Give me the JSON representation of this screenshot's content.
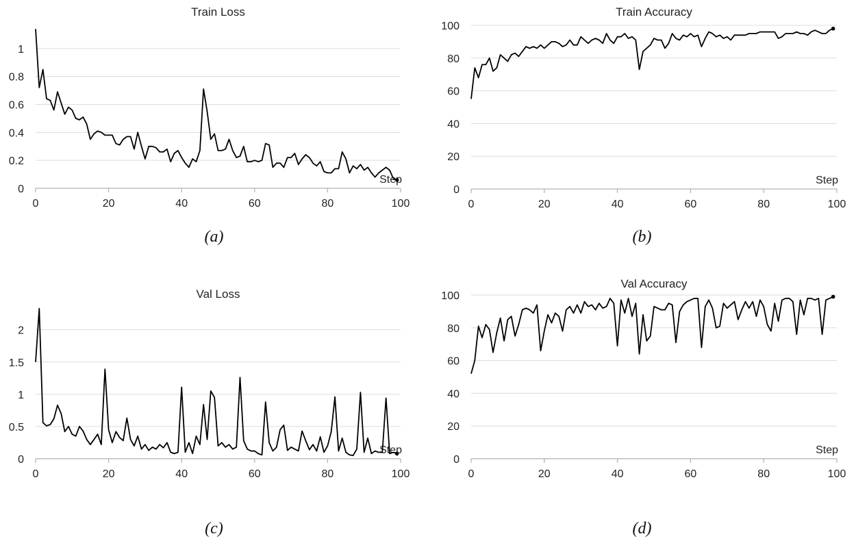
{
  "chart_data": [
    {
      "type": "line",
      "title": "Train Loss",
      "xlabel": "Step",
      "ylabel": "",
      "xlim": [
        0,
        100
      ],
      "ylim": [
        0,
        1.2
      ],
      "xticks": [
        0,
        20,
        40,
        60,
        80,
        100
      ],
      "yticks": [
        0,
        0.2,
        0.4,
        0.6,
        0.8,
        1
      ],
      "grid": true,
      "color": "#000000",
      "x": [
        0,
        1,
        2,
        3,
        4,
        5,
        6,
        7,
        8,
        9,
        10,
        11,
        12,
        13,
        14,
        15,
        16,
        17,
        18,
        19,
        20,
        21,
        22,
        23,
        24,
        25,
        26,
        27,
        28,
        29,
        30,
        31,
        32,
        33,
        34,
        35,
        36,
        37,
        38,
        39,
        40,
        41,
        42,
        43,
        44,
        45,
        46,
        47,
        48,
        49,
        50,
        51,
        52,
        53,
        54,
        55,
        56,
        57,
        58,
        59,
        60,
        61,
        62,
        63,
        64,
        65,
        66,
        67,
        68,
        69,
        70,
        71,
        72,
        73,
        74,
        75,
        76,
        77,
        78,
        79,
        80,
        81,
        82,
        83,
        84,
        85,
        86,
        87,
        88,
        89,
        90,
        91,
        92,
        93,
        94,
        95,
        96,
        97,
        98,
        99
      ],
      "values": [
        1.14,
        0.72,
        0.85,
        0.64,
        0.63,
        0.56,
        0.69,
        0.61,
        0.53,
        0.58,
        0.56,
        0.5,
        0.49,
        0.51,
        0.46,
        0.35,
        0.39,
        0.41,
        0.4,
        0.38,
        0.38,
        0.38,
        0.32,
        0.31,
        0.35,
        0.37,
        0.37,
        0.28,
        0.4,
        0.3,
        0.21,
        0.3,
        0.3,
        0.29,
        0.26,
        0.26,
        0.28,
        0.19,
        0.25,
        0.27,
        0.22,
        0.18,
        0.15,
        0.21,
        0.19,
        0.27,
        0.71,
        0.55,
        0.35,
        0.39,
        0.27,
        0.27,
        0.28,
        0.35,
        0.27,
        0.22,
        0.23,
        0.3,
        0.19,
        0.19,
        0.2,
        0.19,
        0.2,
        0.32,
        0.31,
        0.15,
        0.18,
        0.18,
        0.15,
        0.22,
        0.22,
        0.25,
        0.17,
        0.21,
        0.24,
        0.22,
        0.18,
        0.16,
        0.19,
        0.12,
        0.11,
        0.11,
        0.14,
        0.14,
        0.26,
        0.21,
        0.11,
        0.16,
        0.14,
        0.17,
        0.13,
        0.15,
        0.11,
        0.08,
        0.11,
        0.13,
        0.15,
        0.13,
        0.07,
        0.06
      ]
    },
    {
      "type": "line",
      "title": "Train Accuracy",
      "xlabel": "Step",
      "ylabel": "",
      "xlim": [
        0,
        100
      ],
      "ylim": [
        0,
        100
      ],
      "xticks": [
        0,
        20,
        40,
        60,
        80,
        100
      ],
      "yticks": [
        0,
        20,
        40,
        60,
        80,
        100
      ],
      "grid": true,
      "color": "#000000",
      "x": [
        0,
        1,
        2,
        3,
        4,
        5,
        6,
        7,
        8,
        9,
        10,
        11,
        12,
        13,
        14,
        15,
        16,
        17,
        18,
        19,
        20,
        21,
        22,
        23,
        24,
        25,
        26,
        27,
        28,
        29,
        30,
        31,
        32,
        33,
        34,
        35,
        36,
        37,
        38,
        39,
        40,
        41,
        42,
        43,
        44,
        45,
        46,
        47,
        48,
        49,
        50,
        51,
        52,
        53,
        54,
        55,
        56,
        57,
        58,
        59,
        60,
        61,
        62,
        63,
        64,
        65,
        66,
        67,
        68,
        69,
        70,
        71,
        72,
        73,
        74,
        75,
        76,
        77,
        78,
        79,
        80,
        81,
        82,
        83,
        84,
        85,
        86,
        87,
        88,
        89,
        90,
        91,
        92,
        93,
        94,
        95,
        96,
        97,
        98,
        99
      ],
      "values": [
        55,
        74,
        68,
        76,
        76,
        80,
        72,
        74,
        82,
        80,
        78,
        82,
        83,
        81,
        84,
        87,
        86,
        87,
        86,
        88,
        86,
        88,
        90,
        90,
        89,
        87,
        88,
        91,
        88,
        88,
        93,
        91,
        89,
        91,
        92,
        91,
        89,
        95,
        91,
        89,
        93,
        93,
        95,
        92,
        93,
        91,
        73,
        84,
        86,
        88,
        92,
        91,
        91,
        86,
        89,
        95,
        92,
        91,
        94,
        93,
        95,
        93,
        94,
        87,
        92,
        96,
        95,
        93,
        94,
        92,
        93,
        91,
        94,
        94,
        94,
        94,
        95,
        95,
        95,
        96,
        96,
        96,
        96,
        96,
        92,
        93,
        95,
        95,
        95,
        96,
        95,
        95,
        94,
        96,
        97,
        96,
        95,
        95,
        97,
        98
      ]
    },
    {
      "type": "line",
      "title": "Val Loss",
      "xlabel": "Step",
      "ylabel": "",
      "xlim": [
        0,
        100
      ],
      "ylim": [
        0,
        2.4
      ],
      "xticks": [
        0,
        20,
        40,
        60,
        80,
        100
      ],
      "yticks": [
        0,
        0.5,
        1,
        1.5,
        2
      ],
      "grid": true,
      "color": "#000000",
      "x": [
        0,
        1,
        2,
        3,
        4,
        5,
        6,
        7,
        8,
        9,
        10,
        11,
        12,
        13,
        14,
        15,
        16,
        17,
        18,
        19,
        20,
        21,
        22,
        23,
        24,
        25,
        26,
        27,
        28,
        29,
        30,
        31,
        32,
        33,
        34,
        35,
        36,
        37,
        38,
        39,
        40,
        41,
        42,
        43,
        44,
        45,
        46,
        47,
        48,
        49,
        50,
        51,
        52,
        53,
        54,
        55,
        56,
        57,
        58,
        59,
        60,
        61,
        62,
        63,
        64,
        65,
        66,
        67,
        68,
        69,
        70,
        71,
        72,
        73,
        74,
        75,
        76,
        77,
        78,
        79,
        80,
        81,
        82,
        83,
        84,
        85,
        86,
        87,
        88,
        89,
        90,
        91,
        92,
        93,
        94,
        95,
        96,
        97,
        98,
        99
      ],
      "values": [
        1.5,
        2.33,
        0.56,
        0.51,
        0.53,
        0.62,
        0.83,
        0.7,
        0.42,
        0.5,
        0.38,
        0.35,
        0.5,
        0.43,
        0.3,
        0.22,
        0.3,
        0.38,
        0.22,
        1.39,
        0.45,
        0.25,
        0.42,
        0.33,
        0.28,
        0.63,
        0.3,
        0.2,
        0.35,
        0.15,
        0.22,
        0.13,
        0.18,
        0.15,
        0.22,
        0.17,
        0.25,
        0.1,
        0.08,
        0.1,
        1.11,
        0.1,
        0.25,
        0.08,
        0.35,
        0.22,
        0.84,
        0.3,
        1.05,
        0.95,
        0.2,
        0.25,
        0.18,
        0.22,
        0.15,
        0.18,
        1.26,
        0.28,
        0.15,
        0.12,
        0.12,
        0.08,
        0.06,
        0.88,
        0.25,
        0.12,
        0.18,
        0.45,
        0.52,
        0.13,
        0.18,
        0.15,
        0.12,
        0.43,
        0.28,
        0.14,
        0.22,
        0.12,
        0.34,
        0.1,
        0.2,
        0.42,
        0.96,
        0.12,
        0.32,
        0.1,
        0.06,
        0.05,
        0.15,
        1.03,
        0.1,
        0.32,
        0.08,
        0.12,
        0.1,
        0.1,
        0.94,
        0.08,
        0.1,
        0.08
      ]
    },
    {
      "type": "line",
      "title": "Val Accuracy",
      "xlabel": "Step",
      "ylabel": "",
      "xlim": [
        0,
        100
      ],
      "ylim": [
        0,
        100
      ],
      "xticks": [
        0,
        20,
        40,
        60,
        80,
        100
      ],
      "yticks": [
        0,
        20,
        40,
        60,
        80,
        100
      ],
      "grid": true,
      "color": "#000000",
      "x": [
        0,
        1,
        2,
        3,
        4,
        5,
        6,
        7,
        8,
        9,
        10,
        11,
        12,
        13,
        14,
        15,
        16,
        17,
        18,
        19,
        20,
        21,
        22,
        23,
        24,
        25,
        26,
        27,
        28,
        29,
        30,
        31,
        32,
        33,
        34,
        35,
        36,
        37,
        38,
        39,
        40,
        41,
        42,
        43,
        44,
        45,
        46,
        47,
        48,
        49,
        50,
        51,
        52,
        53,
        54,
        55,
        56,
        57,
        58,
        59,
        60,
        61,
        62,
        63,
        64,
        65,
        66,
        67,
        68,
        69,
        70,
        71,
        72,
        73,
        74,
        75,
        76,
        77,
        78,
        79,
        80,
        81,
        82,
        83,
        84,
        85,
        86,
        87,
        88,
        89,
        90,
        91,
        92,
        93,
        94,
        95,
        96,
        97,
        98,
        99
      ],
      "values": [
        52,
        60,
        81,
        74,
        82,
        79,
        65,
        77,
        86,
        72,
        85,
        87,
        75,
        82,
        91,
        92,
        91,
        89,
        94,
        66,
        78,
        88,
        83,
        89,
        87,
        78,
        91,
        93,
        89,
        94,
        89,
        96,
        93,
        94,
        91,
        95,
        92,
        93,
        98,
        95,
        69,
        97,
        89,
        98,
        87,
        95,
        64,
        88,
        72,
        75,
        93,
        92,
        91,
        91,
        95,
        94,
        71,
        90,
        94,
        96,
        97,
        98,
        98,
        68,
        93,
        97,
        92,
        80,
        81,
        95,
        92,
        94,
        96,
        85,
        91,
        96,
        92,
        96,
        87,
        97,
        93,
        82,
        78,
        95,
        84,
        97,
        98,
        98,
        96,
        76,
        97,
        88,
        98,
        98,
        97,
        98,
        76,
        97,
        98,
        99
      ]
    }
  ],
  "captions": [
    "(a)",
    "(b)",
    "(c)",
    "(d)"
  ]
}
